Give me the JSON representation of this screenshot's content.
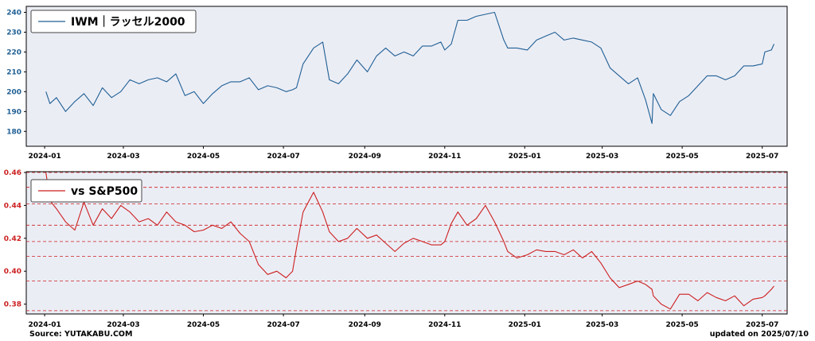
{
  "source": "Source: YUTAKABU.COM",
  "updated": "updated on 2025/07/10",
  "chart_data": [
    {
      "type": "line",
      "legend": "IWM｜ラッセル2000",
      "color": "#1f5f94",
      "y_ticks": [
        180,
        190,
        200,
        210,
        220,
        230,
        240
      ],
      "ylim": [
        172.5,
        243
      ],
      "xlim": [
        "2023-12-18",
        "2025-07-20"
      ],
      "x_ticks": [
        "2024-01",
        "2024-03",
        "2024-05",
        "2024-07",
        "2024-09",
        "2024-11",
        "2025-01",
        "2025-03",
        "2025-05",
        "2025-07"
      ],
      "x_tick_dates": [
        "2024-01-01",
        "2024-03-01",
        "2024-05-01",
        "2024-07-01",
        "2024-09-01",
        "2024-11-01",
        "2025-01-01",
        "2025-03-01",
        "2025-05-01",
        "2025-07-01"
      ],
      "grid": false,
      "legend_position": "top-left",
      "series": [
        {
          "x": [
            "2024-01-02",
            "2024-01-05",
            "2024-01-10",
            "2024-01-17",
            "2024-01-24",
            "2024-01-31",
            "2024-02-07",
            "2024-02-14",
            "2024-02-21",
            "2024-02-28",
            "2024-03-06",
            "2024-03-13",
            "2024-03-20",
            "2024-03-27",
            "2024-04-03",
            "2024-04-10",
            "2024-04-17",
            "2024-04-24",
            "2024-05-01",
            "2024-05-08",
            "2024-05-15",
            "2024-05-22",
            "2024-05-29",
            "2024-06-05",
            "2024-06-12",
            "2024-06-19",
            "2024-06-26",
            "2024-07-03",
            "2024-07-08",
            "2024-07-11",
            "2024-07-16",
            "2024-07-24",
            "2024-07-31",
            "2024-08-05",
            "2024-08-12",
            "2024-08-19",
            "2024-08-26",
            "2024-09-03",
            "2024-09-10",
            "2024-09-17",
            "2024-09-24",
            "2024-10-01",
            "2024-10-08",
            "2024-10-15",
            "2024-10-22",
            "2024-10-29",
            "2024-11-01",
            "2024-11-06",
            "2024-11-11",
            "2024-11-18",
            "2024-11-25",
            "2024-12-02",
            "2024-12-09",
            "2024-12-16",
            "2024-12-19",
            "2024-12-26",
            "2025-01-03",
            "2025-01-10",
            "2025-01-17",
            "2025-01-24",
            "2025-01-31",
            "2025-02-07",
            "2025-02-14",
            "2025-02-21",
            "2025-02-28",
            "2025-03-07",
            "2025-03-14",
            "2025-03-21",
            "2025-03-28",
            "2025-04-03",
            "2025-04-08",
            "2025-04-09",
            "2025-04-15",
            "2025-04-22",
            "2025-04-29",
            "2025-05-06",
            "2025-05-13",
            "2025-05-20",
            "2025-05-27",
            "2025-06-03",
            "2025-06-10",
            "2025-06-17",
            "2025-06-24",
            "2025-07-01",
            "2025-07-03",
            "2025-07-08",
            "2025-07-10"
          ],
          "values": [
            200,
            194,
            197,
            190,
            195,
            199,
            193,
            202,
            197,
            200,
            206,
            204,
            206,
            207,
            205,
            209,
            198,
            200,
            194,
            199,
            203,
            205,
            205,
            207,
            201,
            203,
            202,
            200,
            201,
            202,
            214,
            222,
            225,
            206,
            204,
            209,
            216,
            210,
            218,
            222,
            218,
            220,
            218,
            223,
            223,
            225,
            221,
            224,
            236,
            236,
            238,
            239,
            240,
            226,
            222,
            222,
            221,
            226,
            228,
            230,
            226,
            227,
            226,
            225,
            222,
            212,
            208,
            204,
            207,
            196,
            184,
            199,
            191,
            188,
            195,
            198,
            203,
            208,
            208,
            206,
            208,
            213,
            213,
            214,
            220,
            221,
            224
          ]
        }
      ]
    },
    {
      "type": "line",
      "legend": "vs S&P500",
      "color": "#cc1f1f",
      "y_ticks": [
        0.38,
        0.4,
        0.42,
        0.44,
        0.46
      ],
      "ylim": [
        0.374,
        0.4605
      ],
      "xlim": [
        "2023-12-18",
        "2025-07-20"
      ],
      "x_ticks": [
        "2024-01",
        "2024-03",
        "2024-05",
        "2024-07",
        "2024-09",
        "2024-11",
        "2025-01",
        "2025-03",
        "2025-05",
        "2025-07"
      ],
      "x_tick_dates": [
        "2024-01-01",
        "2024-03-01",
        "2024-05-01",
        "2024-07-01",
        "2024-09-01",
        "2024-11-01",
        "2025-01-01",
        "2025-03-01",
        "2025-05-01",
        "2025-07-01"
      ],
      "hlines": [
        0.376,
        0.394,
        0.409,
        0.418,
        0.428,
        0.441,
        0.451,
        0.46
      ],
      "legend_position": "top-left",
      "series": [
        {
          "x": [
            "2024-01-02",
            "2024-01-05",
            "2024-01-10",
            "2024-01-17",
            "2024-01-24",
            "2024-01-31",
            "2024-02-07",
            "2024-02-14",
            "2024-02-21",
            "2024-02-28",
            "2024-03-06",
            "2024-03-13",
            "2024-03-20",
            "2024-03-27",
            "2024-04-03",
            "2024-04-10",
            "2024-04-17",
            "2024-04-24",
            "2024-05-01",
            "2024-05-08",
            "2024-05-15",
            "2024-05-22",
            "2024-05-29",
            "2024-06-05",
            "2024-06-12",
            "2024-06-19",
            "2024-06-26",
            "2024-07-03",
            "2024-07-08",
            "2024-07-11",
            "2024-07-16",
            "2024-07-24",
            "2024-07-31",
            "2024-08-05",
            "2024-08-12",
            "2024-08-19",
            "2024-08-26",
            "2024-09-03",
            "2024-09-10",
            "2024-09-17",
            "2024-09-24",
            "2024-10-01",
            "2024-10-08",
            "2024-10-15",
            "2024-10-22",
            "2024-10-29",
            "2024-11-01",
            "2024-11-06",
            "2024-11-11",
            "2024-11-18",
            "2024-11-25",
            "2024-12-02",
            "2024-12-09",
            "2024-12-16",
            "2024-12-19",
            "2024-12-26",
            "2025-01-03",
            "2025-01-10",
            "2025-01-17",
            "2025-01-24",
            "2025-01-31",
            "2025-02-07",
            "2025-02-14",
            "2025-02-21",
            "2025-02-28",
            "2025-03-07",
            "2025-03-14",
            "2025-03-21",
            "2025-03-28",
            "2025-04-03",
            "2025-04-08",
            "2025-04-09",
            "2025-04-15",
            "2025-04-22",
            "2025-04-29",
            "2025-05-06",
            "2025-05-13",
            "2025-05-20",
            "2025-05-27",
            "2025-06-03",
            "2025-06-10",
            "2025-06-17",
            "2025-06-24",
            "2025-07-01",
            "2025-07-03",
            "2025-07-08",
            "2025-07-10"
          ],
          "values": [
            0.46,
            0.443,
            0.438,
            0.43,
            0.425,
            0.442,
            0.428,
            0.438,
            0.432,
            0.44,
            0.436,
            0.43,
            0.432,
            0.428,
            0.436,
            0.43,
            0.428,
            0.424,
            0.425,
            0.428,
            0.426,
            0.43,
            0.423,
            0.418,
            0.404,
            0.398,
            0.4,
            0.396,
            0.4,
            0.414,
            0.436,
            0.448,
            0.436,
            0.424,
            0.418,
            0.42,
            0.426,
            0.42,
            0.422,
            0.417,
            0.412,
            0.417,
            0.42,
            0.418,
            0.416,
            0.416,
            0.418,
            0.429,
            0.436,
            0.428,
            0.432,
            0.44,
            0.43,
            0.418,
            0.412,
            0.408,
            0.41,
            0.413,
            0.412,
            0.412,
            0.41,
            0.413,
            0.408,
            0.412,
            0.405,
            0.396,
            0.39,
            0.392,
            0.394,
            0.392,
            0.389,
            0.385,
            0.38,
            0.377,
            0.386,
            0.386,
            0.382,
            0.387,
            0.384,
            0.382,
            0.385,
            0.379,
            0.383,
            0.384,
            0.385,
            0.389,
            0.391
          ]
        }
      ]
    }
  ]
}
